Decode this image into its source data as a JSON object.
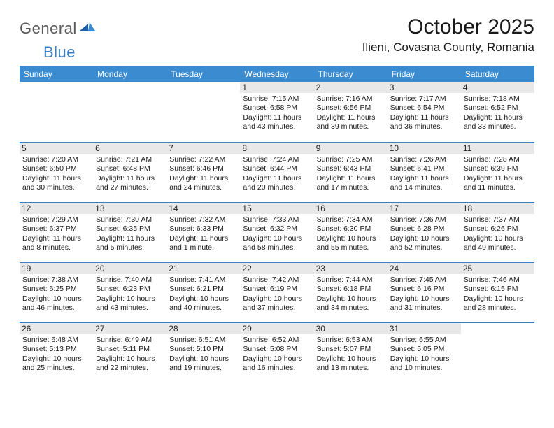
{
  "logo": {
    "general": "General",
    "blue": "Blue"
  },
  "title": "October 2025",
  "location": "Ilieni, Covasna County, Romania",
  "colors": {
    "header_bg": "#3b8bd1",
    "rule": "#3b7fc4",
    "daynum_bg": "#e8e8e8",
    "text": "#1a1a1a",
    "logo_gray": "#5a5a5a",
    "logo_blue": "#3b7fc4"
  },
  "weekdays": [
    "Sunday",
    "Monday",
    "Tuesday",
    "Wednesday",
    "Thursday",
    "Friday",
    "Saturday"
  ],
  "cells": [
    {
      "day": "",
      "lines": []
    },
    {
      "day": "",
      "lines": []
    },
    {
      "day": "",
      "lines": []
    },
    {
      "day": "1",
      "lines": [
        "Sunrise: 7:15 AM",
        "Sunset: 6:58 PM",
        "Daylight: 11 hours and 43 minutes."
      ]
    },
    {
      "day": "2",
      "lines": [
        "Sunrise: 7:16 AM",
        "Sunset: 6:56 PM",
        "Daylight: 11 hours and 39 minutes."
      ]
    },
    {
      "day": "3",
      "lines": [
        "Sunrise: 7:17 AM",
        "Sunset: 6:54 PM",
        "Daylight: 11 hours and 36 minutes."
      ]
    },
    {
      "day": "4",
      "lines": [
        "Sunrise: 7:18 AM",
        "Sunset: 6:52 PM",
        "Daylight: 11 hours and 33 minutes."
      ]
    },
    {
      "day": "5",
      "lines": [
        "Sunrise: 7:20 AM",
        "Sunset: 6:50 PM",
        "Daylight: 11 hours and 30 minutes."
      ]
    },
    {
      "day": "6",
      "lines": [
        "Sunrise: 7:21 AM",
        "Sunset: 6:48 PM",
        "Daylight: 11 hours and 27 minutes."
      ]
    },
    {
      "day": "7",
      "lines": [
        "Sunrise: 7:22 AM",
        "Sunset: 6:46 PM",
        "Daylight: 11 hours and 24 minutes."
      ]
    },
    {
      "day": "8",
      "lines": [
        "Sunrise: 7:24 AM",
        "Sunset: 6:44 PM",
        "Daylight: 11 hours and 20 minutes."
      ]
    },
    {
      "day": "9",
      "lines": [
        "Sunrise: 7:25 AM",
        "Sunset: 6:43 PM",
        "Daylight: 11 hours and 17 minutes."
      ]
    },
    {
      "day": "10",
      "lines": [
        "Sunrise: 7:26 AM",
        "Sunset: 6:41 PM",
        "Daylight: 11 hours and 14 minutes."
      ]
    },
    {
      "day": "11",
      "lines": [
        "Sunrise: 7:28 AM",
        "Sunset: 6:39 PM",
        "Daylight: 11 hours and 11 minutes."
      ]
    },
    {
      "day": "12",
      "lines": [
        "Sunrise: 7:29 AM",
        "Sunset: 6:37 PM",
        "Daylight: 11 hours and 8 minutes."
      ]
    },
    {
      "day": "13",
      "lines": [
        "Sunrise: 7:30 AM",
        "Sunset: 6:35 PM",
        "Daylight: 11 hours and 5 minutes."
      ]
    },
    {
      "day": "14",
      "lines": [
        "Sunrise: 7:32 AM",
        "Sunset: 6:33 PM",
        "Daylight: 11 hours and 1 minute."
      ]
    },
    {
      "day": "15",
      "lines": [
        "Sunrise: 7:33 AM",
        "Sunset: 6:32 PM",
        "Daylight: 10 hours and 58 minutes."
      ]
    },
    {
      "day": "16",
      "lines": [
        "Sunrise: 7:34 AM",
        "Sunset: 6:30 PM",
        "Daylight: 10 hours and 55 minutes."
      ]
    },
    {
      "day": "17",
      "lines": [
        "Sunrise: 7:36 AM",
        "Sunset: 6:28 PM",
        "Daylight: 10 hours and 52 minutes."
      ]
    },
    {
      "day": "18",
      "lines": [
        "Sunrise: 7:37 AM",
        "Sunset: 6:26 PM",
        "Daylight: 10 hours and 49 minutes."
      ]
    },
    {
      "day": "19",
      "lines": [
        "Sunrise: 7:38 AM",
        "Sunset: 6:25 PM",
        "Daylight: 10 hours and 46 minutes."
      ]
    },
    {
      "day": "20",
      "lines": [
        "Sunrise: 7:40 AM",
        "Sunset: 6:23 PM",
        "Daylight: 10 hours and 43 minutes."
      ]
    },
    {
      "day": "21",
      "lines": [
        "Sunrise: 7:41 AM",
        "Sunset: 6:21 PM",
        "Daylight: 10 hours and 40 minutes."
      ]
    },
    {
      "day": "22",
      "lines": [
        "Sunrise: 7:42 AM",
        "Sunset: 6:19 PM",
        "Daylight: 10 hours and 37 minutes."
      ]
    },
    {
      "day": "23",
      "lines": [
        "Sunrise: 7:44 AM",
        "Sunset: 6:18 PM",
        "Daylight: 10 hours and 34 minutes."
      ]
    },
    {
      "day": "24",
      "lines": [
        "Sunrise: 7:45 AM",
        "Sunset: 6:16 PM",
        "Daylight: 10 hours and 31 minutes."
      ]
    },
    {
      "day": "25",
      "lines": [
        "Sunrise: 7:46 AM",
        "Sunset: 6:15 PM",
        "Daylight: 10 hours and 28 minutes."
      ]
    },
    {
      "day": "26",
      "lines": [
        "Sunrise: 6:48 AM",
        "Sunset: 5:13 PM",
        "Daylight: 10 hours and 25 minutes."
      ]
    },
    {
      "day": "27",
      "lines": [
        "Sunrise: 6:49 AM",
        "Sunset: 5:11 PM",
        "Daylight: 10 hours and 22 minutes."
      ]
    },
    {
      "day": "28",
      "lines": [
        "Sunrise: 6:51 AM",
        "Sunset: 5:10 PM",
        "Daylight: 10 hours and 19 minutes."
      ]
    },
    {
      "day": "29",
      "lines": [
        "Sunrise: 6:52 AM",
        "Sunset: 5:08 PM",
        "Daylight: 10 hours and 16 minutes."
      ]
    },
    {
      "day": "30",
      "lines": [
        "Sunrise: 6:53 AM",
        "Sunset: 5:07 PM",
        "Daylight: 10 hours and 13 minutes."
      ]
    },
    {
      "day": "31",
      "lines": [
        "Sunrise: 6:55 AM",
        "Sunset: 5:05 PM",
        "Daylight: 10 hours and 10 minutes."
      ]
    },
    {
      "day": "",
      "lines": []
    }
  ]
}
